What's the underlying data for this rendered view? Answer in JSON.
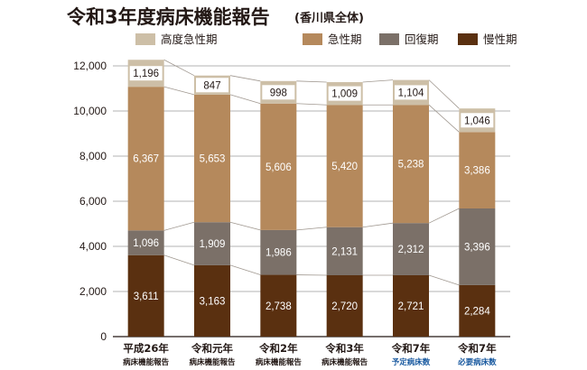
{
  "chart_data": {
    "type": "bar",
    "stacked": true,
    "title": "令和3年度病床機能報告",
    "subtitle": "(香川県全体)",
    "categories": [
      "平成26年",
      "令和元年",
      "令和2年",
      "令和3年",
      "令和7年",
      "令和7年"
    ],
    "category_sublabels": [
      "病床機能報告",
      "病床機能報告",
      "病床機能報告",
      "病床機能報告",
      "予定病床数",
      "必要病床数"
    ],
    "category_sublabel_colors": [
      "#231815",
      "#231815",
      "#231815",
      "#231815",
      "#1a5aa0",
      "#1a5aa0"
    ],
    "series": [
      {
        "name": "慢性期",
        "color": "#5a3010",
        "values": [
          3611,
          3163,
          2738,
          2720,
          2721,
          2284
        ]
      },
      {
        "name": "回復期",
        "color": "#7b7068",
        "values": [
          1096,
          1909,
          1986,
          2131,
          2312,
          3396
        ]
      },
      {
        "name": "急性期",
        "color": "#b5895c",
        "values": [
          6367,
          5653,
          5606,
          5420,
          5238,
          3386
        ]
      },
      {
        "name": "高度急性期",
        "color": "#cdbfa7",
        "values": [
          1196,
          847,
          998,
          1009,
          1104,
          1046
        ]
      }
    ],
    "legend_order": [
      "高度急性期",
      "急性期",
      "回復期",
      "慢性期"
    ],
    "legend_position": "top-right",
    "ylim": [
      0,
      12000
    ],
    "yticks": [
      0,
      2000,
      4000,
      6000,
      8000,
      10000,
      12000
    ],
    "ytick_labels": [
      "0",
      "2,000",
      "4,000",
      "6,000",
      "8,000",
      "10,000",
      "12,000"
    ],
    "grid": true,
    "xlabel": "",
    "ylabel": ""
  }
}
